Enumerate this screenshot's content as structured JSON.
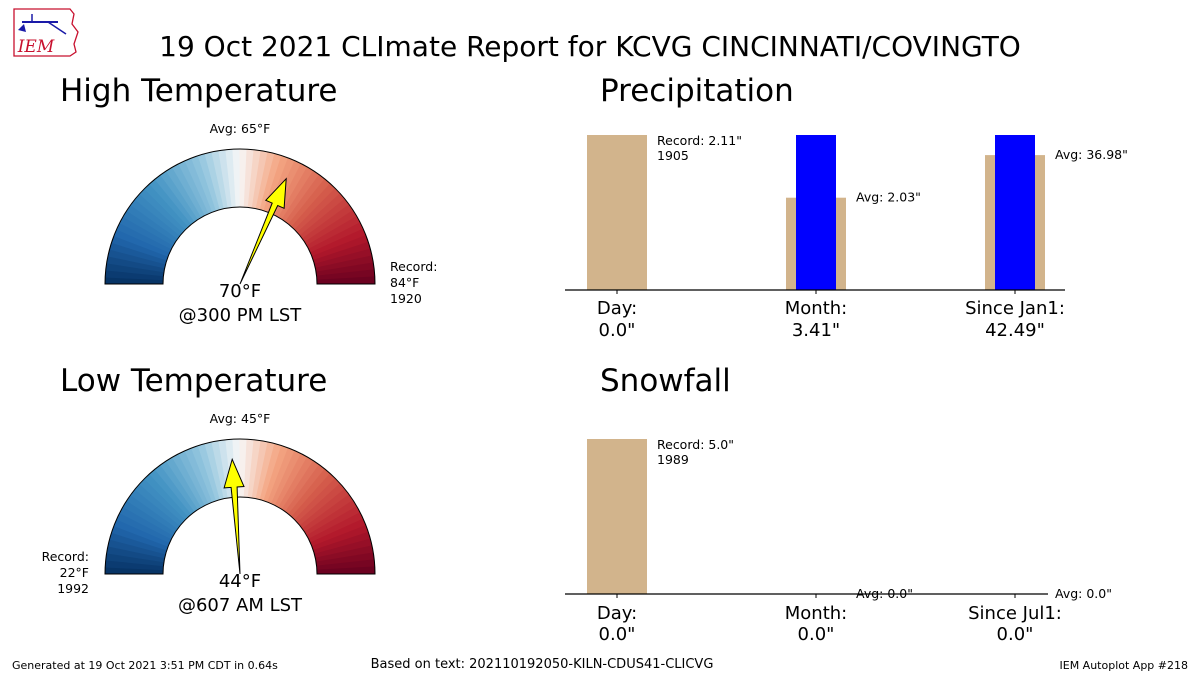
{
  "logo_text": "IEM",
  "title": "19 Oct 2021 CLImate Report for KCVG CINCINNATI/COVINGTO",
  "footer": {
    "generated": "Generated at 19 Oct 2021 3:51 PM CDT in 0.64s",
    "based_on": "Based on text: 202110192050-KILN-CDUS41-CLICVG",
    "app": "IEM Autoplot App #218"
  },
  "chart_data": [
    {
      "type": "gauge",
      "title": "High Temperature",
      "avg_label": "Avg: 65°F",
      "value_label": "70°F",
      "time_label": "@300 PM LST",
      "record_title": "Record:",
      "record_value_label": "84°F",
      "record_year_label": "1920",
      "avg": 65,
      "value": 70,
      "record": 84,
      "color_low": "#053061",
      "color_high": "#67001f"
    },
    {
      "type": "gauge",
      "title": "Low Temperature",
      "avg_label": "Avg: 45°F",
      "value_label": "44°F",
      "time_label": "@607 AM LST",
      "record_title": "Record:",
      "record_value_label": "22°F",
      "record_year_label": "1992",
      "avg": 45,
      "value": 44,
      "record": 22,
      "color_low": "#053061",
      "color_high": "#67001f"
    },
    {
      "type": "bar",
      "title": "Precipitation",
      "categories": [
        "Day:",
        "Month:",
        "Since Jan1:"
      ],
      "value_labels": [
        "0.0\"",
        "3.41\"",
        "42.49\""
      ],
      "values": [
        0.0,
        3.41,
        42.49
      ],
      "avg": [
        null,
        2.03,
        36.98
      ],
      "avg_labels": [
        null,
        "Avg: 2.03\"",
        "Avg: 36.98\""
      ],
      "record": [
        2.11,
        null,
        null
      ],
      "record_labels": [
        "Record: 2.11\"",
        null,
        null
      ],
      "record_years": [
        "1905",
        null,
        null
      ],
      "colors": {
        "observed": "#0000ff",
        "climo": "#d2b48c"
      }
    },
    {
      "type": "bar",
      "title": "Snowfall",
      "categories": [
        "Day:",
        "Month:",
        "Since Jul1:"
      ],
      "value_labels": [
        "0.0\"",
        "0.0\"",
        "0.0\""
      ],
      "values": [
        0.0,
        0.0,
        0.0
      ],
      "avg": [
        null,
        0.0,
        0.0
      ],
      "avg_labels": [
        null,
        "Avg: 0.0\"",
        "Avg: 0.0\""
      ],
      "record": [
        5.0,
        null,
        null
      ],
      "record_labels": [
        "Record: 5.0\"",
        null,
        null
      ],
      "record_years": [
        "1989",
        null,
        null
      ],
      "colors": {
        "observed": "#0000ff",
        "climo": "#d2b48c"
      }
    }
  ]
}
